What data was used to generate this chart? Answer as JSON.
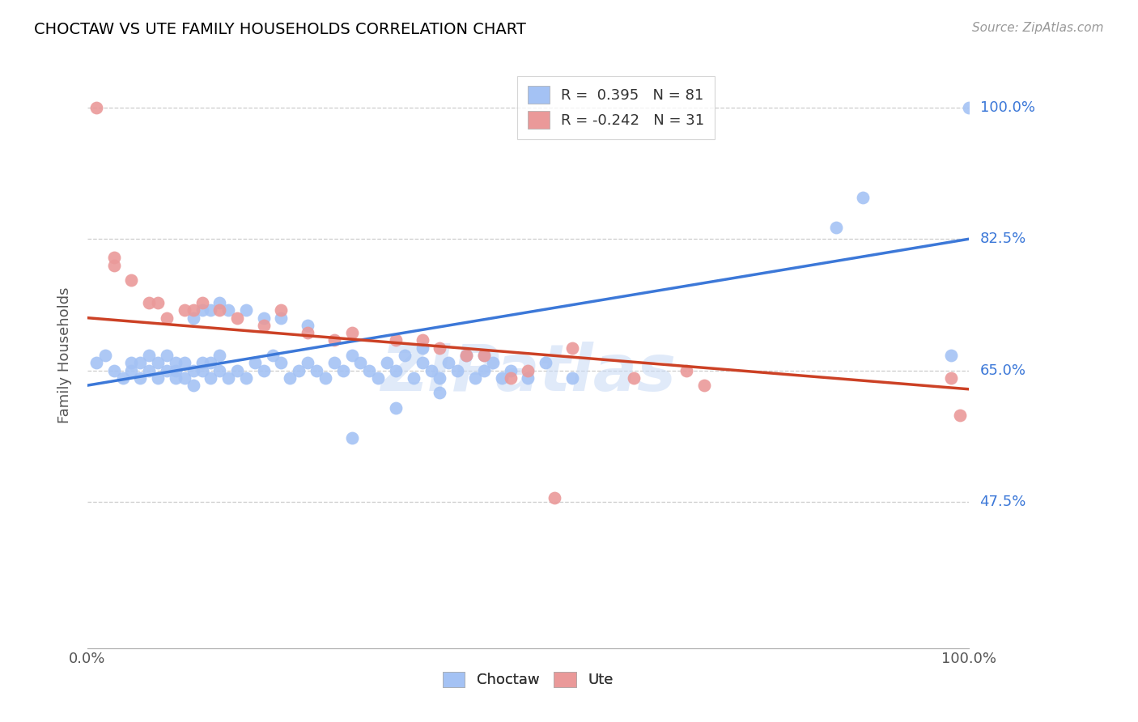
{
  "title": "CHOCTAW VS UTE FAMILY HOUSEHOLDS CORRELATION CHART",
  "source": "Source: ZipAtlas.com",
  "ylabel": "Family Households",
  "ytick_values": [
    0.475,
    0.65,
    0.825,
    1.0
  ],
  "ytick_labels": [
    "47.5%",
    "65.0%",
    "82.5%",
    "100.0%"
  ],
  "xlim": [
    0.0,
    1.0
  ],
  "ylim": [
    0.28,
    1.06
  ],
  "legend_blue_label": "R =  0.395   N = 81",
  "legend_pink_label": "R = -0.242   N = 31",
  "legend_bottom_blue": "Choctaw",
  "legend_bottom_pink": "Ute",
  "blue_color": "#a4c2f4",
  "pink_color": "#ea9999",
  "blue_line_color": "#3c78d8",
  "pink_line_color": "#cc4125",
  "watermark": "ZIPatlas",
  "blue_line_x0": 0.0,
  "blue_line_y0": 0.63,
  "blue_line_x1": 1.0,
  "blue_line_y1": 0.825,
  "pink_line_x0": 0.0,
  "pink_line_y0": 0.72,
  "pink_line_x1": 1.0,
  "pink_line_y1": 0.625,
  "blue_scatter_x": [
    0.01,
    0.02,
    0.03,
    0.04,
    0.05,
    0.05,
    0.06,
    0.06,
    0.07,
    0.07,
    0.08,
    0.08,
    0.09,
    0.09,
    0.1,
    0.1,
    0.1,
    0.11,
    0.11,
    0.12,
    0.12,
    0.13,
    0.13,
    0.14,
    0.14,
    0.15,
    0.15,
    0.16,
    0.17,
    0.18,
    0.19,
    0.2,
    0.21,
    0.22,
    0.23,
    0.24,
    0.25,
    0.26,
    0.27,
    0.28,
    0.29,
    0.3,
    0.31,
    0.32,
    0.33,
    0.34,
    0.35,
    0.36,
    0.37,
    0.38,
    0.39,
    0.4,
    0.41,
    0.42,
    0.43,
    0.44,
    0.45,
    0.46,
    0.47,
    0.48,
    0.5,
    0.52,
    0.55,
    0.3,
    0.35,
    0.4,
    0.25,
    0.22,
    0.2,
    0.18,
    0.16,
    0.15,
    0.14,
    0.13,
    0.12,
    0.38,
    0.45,
    0.85,
    0.88,
    0.98,
    1.0
  ],
  "blue_scatter_y": [
    0.66,
    0.67,
    0.65,
    0.64,
    0.66,
    0.65,
    0.64,
    0.66,
    0.65,
    0.67,
    0.64,
    0.66,
    0.65,
    0.67,
    0.64,
    0.66,
    0.65,
    0.64,
    0.66,
    0.65,
    0.63,
    0.66,
    0.65,
    0.64,
    0.66,
    0.65,
    0.67,
    0.64,
    0.65,
    0.64,
    0.66,
    0.65,
    0.67,
    0.66,
    0.64,
    0.65,
    0.66,
    0.65,
    0.64,
    0.66,
    0.65,
    0.67,
    0.66,
    0.65,
    0.64,
    0.66,
    0.65,
    0.67,
    0.64,
    0.66,
    0.65,
    0.64,
    0.66,
    0.65,
    0.67,
    0.64,
    0.65,
    0.66,
    0.64,
    0.65,
    0.64,
    0.66,
    0.64,
    0.56,
    0.6,
    0.62,
    0.71,
    0.72,
    0.72,
    0.73,
    0.73,
    0.74,
    0.73,
    0.73,
    0.72,
    0.68,
    0.67,
    0.84,
    0.88,
    0.67,
    1.0
  ],
  "pink_scatter_x": [
    0.01,
    0.03,
    0.05,
    0.07,
    0.09,
    0.11,
    0.13,
    0.15,
    0.17,
    0.2,
    0.22,
    0.25,
    0.28,
    0.03,
    0.08,
    0.12,
    0.35,
    0.4,
    0.45,
    0.5,
    0.55,
    0.62,
    0.68,
    0.7,
    0.3,
    0.38,
    0.43,
    0.48,
    0.53,
    0.98,
    0.99
  ],
  "pink_scatter_y": [
    1.0,
    0.8,
    0.77,
    0.74,
    0.72,
    0.73,
    0.74,
    0.73,
    0.72,
    0.71,
    0.73,
    0.7,
    0.69,
    0.79,
    0.74,
    0.73,
    0.69,
    0.68,
    0.67,
    0.65,
    0.68,
    0.64,
    0.65,
    0.63,
    0.7,
    0.69,
    0.67,
    0.64,
    0.48,
    0.64,
    0.59
  ]
}
